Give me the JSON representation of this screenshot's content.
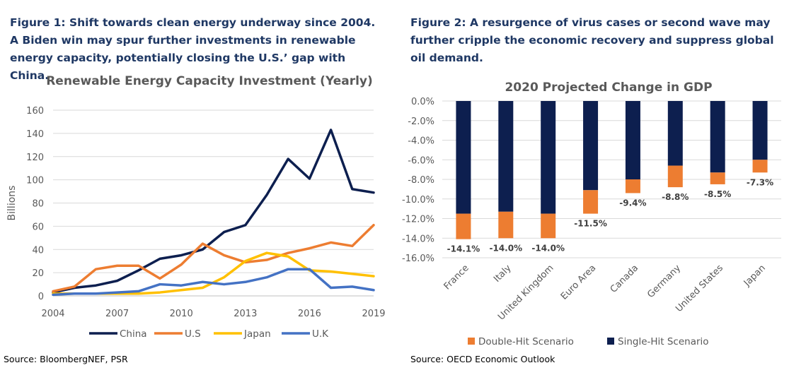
{
  "figure1": {
    "title": "Figure 1: Shift towards clean energy underway since 2004. A Biden win may spur further investments in renewable energy capacity, potentially closing the U.S.’ gap with China.",
    "source": "Source: BloombergNEF, PSR"
  },
  "figure2": {
    "title": "Figure 2: A resurgence of virus cases or second wave may further cripple the economic recovery and suppress global oil demand.",
    "source": "Source: OECD Economic Outlook"
  },
  "chart_data": [
    {
      "type": "line",
      "title": "Renewable Energy Capacity Investment (Yearly)",
      "ylabel": "Billions",
      "xlabel": "",
      "x": [
        2004,
        2005,
        2006,
        2007,
        2008,
        2009,
        2010,
        2011,
        2012,
        2013,
        2014,
        2015,
        2016,
        2017,
        2018,
        2019
      ],
      "xticks": [
        "2004",
        "2007",
        "2010",
        "2013",
        "2016",
        "2019"
      ],
      "yticks": [
        "0",
        "20",
        "40",
        "60",
        "80",
        "100",
        "120",
        "140",
        "160"
      ],
      "ylim": [
        0,
        160
      ],
      "grid": true,
      "legend": "bottom",
      "series": [
        {
          "name": "China",
          "color": "#0d1f4f",
          "values": [
            3,
            7,
            9,
            13,
            22,
            32,
            35,
            40,
            55,
            61,
            87,
            118,
            101,
            143,
            92,
            89
          ]
        },
        {
          "name": "U.S",
          "color": "#ed7d31",
          "values": [
            4,
            8,
            23,
            26,
            26,
            15,
            27,
            45,
            35,
            29,
            31,
            37,
            41,
            46,
            43,
            61
          ]
        },
        {
          "name": "Japan",
          "color": "#ffc000",
          "values": [
            2,
            2,
            2,
            2,
            2,
            3,
            5,
            7,
            16,
            30,
            37,
            34,
            22,
            21,
            19,
            17
          ]
        },
        {
          "name": "U.K",
          "color": "#4472c4",
          "values": [
            1,
            2,
            2,
            3,
            4,
            10,
            9,
            12,
            10,
            12,
            16,
            23,
            23,
            7,
            8,
            5
          ]
        }
      ]
    },
    {
      "type": "bar",
      "stacked": true,
      "title": "2020 Projected Change in GDP",
      "categories": [
        "France",
        "Italy",
        "United Kingdom",
        "Euro Area",
        "Canada",
        "Germany",
        "United States",
        "Japan"
      ],
      "yticks": [
        "0.0%",
        "-2.0%",
        "-4.0%",
        "-6.0%",
        "-8.0%",
        "-10.0%",
        "-12.0%",
        "-14.0%",
        "-16.0%"
      ],
      "ylim": [
        -16,
        0
      ],
      "grid": true,
      "legend": "bottom",
      "series": [
        {
          "name": "Single-Hit Scenario",
          "color": "#0d1f4f",
          "values": [
            -11.5,
            -11.3,
            -11.5,
            -9.1,
            -8.0,
            -6.6,
            -7.3,
            -6.0
          ]
        },
        {
          "name": "Double-Hit Scenario",
          "color": "#ed7d31",
          "values": [
            -2.6,
            -2.7,
            -2.5,
            -2.4,
            -1.4,
            -2.2,
            -1.2,
            -1.3
          ]
        }
      ],
      "totals": [
        -14.1,
        -14.0,
        -14.0,
        -11.5,
        -9.4,
        -8.8,
        -8.5,
        -7.3
      ],
      "data_labels": [
        "-14.1%",
        "-14.0%",
        "-14.0%",
        "-11.5%",
        "-9.4%",
        "-8.8%",
        "-8.5%",
        "-7.3%"
      ]
    }
  ]
}
